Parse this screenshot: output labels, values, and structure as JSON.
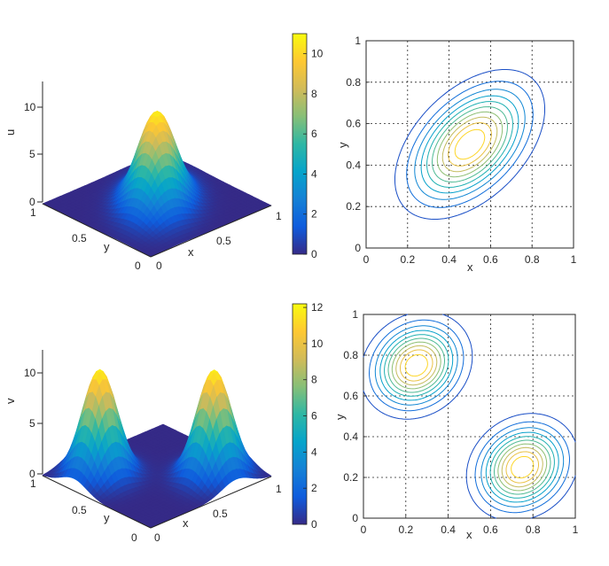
{
  "chart_data": [
    {
      "type": "surface",
      "zlabel": "u",
      "xlabel": "x",
      "ylabel": "y",
      "xlim": [
        0,
        1
      ],
      "ylim": [
        0,
        1
      ],
      "zlim": [
        0,
        11
      ],
      "z_ticks": [
        "0",
        "5",
        "10"
      ],
      "x_ticks": [
        "0",
        "0.5",
        "1"
      ],
      "y_ticks": [
        "0",
        "0.5",
        "1"
      ],
      "peaks": [
        {
          "x": 0.5,
          "y": 0.5,
          "height": 10.7,
          "spread_major": 0.2,
          "spread_minor": 0.12
        }
      ],
      "colorbar": {
        "min": 0,
        "max": 11,
        "ticks": [
          "0",
          "2",
          "4",
          "6",
          "8",
          "10"
        ]
      },
      "colormap": [
        "#352a87",
        "#0f5cdd",
        "#1481d6",
        "#06a4ca",
        "#2eb7a4",
        "#87bf77",
        "#d1bb59",
        "#fec832",
        "#f9fb0e"
      ]
    },
    {
      "type": "contour",
      "xlabel": "x",
      "ylabel": "y",
      "xlim": [
        0,
        1
      ],
      "ylim": [
        0,
        1
      ],
      "x_ticks": [
        "0",
        "0.2",
        "0.4",
        "0.6",
        "0.8",
        "1"
      ],
      "y_ticks": [
        "0",
        "0.2",
        "0.4",
        "0.6",
        "0.8",
        "1"
      ],
      "grid": true,
      "levels": 10,
      "peaks": [
        {
          "x": 0.5,
          "y": 0.5,
          "height": 10.7,
          "spread_major": 0.2,
          "spread_minor": 0.12
        }
      ]
    },
    {
      "type": "surface",
      "zlabel": "v",
      "xlabel": "x",
      "ylabel": "y",
      "xlim": [
        0,
        1
      ],
      "ylim": [
        0,
        1
      ],
      "zlim": [
        0,
        12.2
      ],
      "z_ticks": [
        "0",
        "5",
        "10"
      ],
      "x_ticks": [
        "0",
        "0.5",
        "1"
      ],
      "y_ticks": [
        "0",
        "0.5",
        "1"
      ],
      "peaks": [
        {
          "x": 0.25,
          "y": 0.75,
          "height": 12,
          "spread_major": 0.13,
          "spread_minor": 0.11
        },
        {
          "x": 0.75,
          "y": 0.25,
          "height": 12,
          "spread_major": 0.13,
          "spread_minor": 0.11
        }
      ],
      "colorbar": {
        "min": 0,
        "max": 12.2,
        "ticks": [
          "0",
          "2",
          "4",
          "6",
          "8",
          "10",
          "12"
        ]
      },
      "colormap": [
        "#352a87",
        "#0f5cdd",
        "#1481d6",
        "#06a4ca",
        "#2eb7a4",
        "#87bf77",
        "#d1bb59",
        "#fec832",
        "#f9fb0e"
      ]
    },
    {
      "type": "contour",
      "xlabel": "x",
      "ylabel": "y",
      "xlim": [
        0,
        1
      ],
      "ylim": [
        0,
        1
      ],
      "x_ticks": [
        "0",
        "0.2",
        "0.4",
        "0.6",
        "0.8",
        "1"
      ],
      "y_ticks": [
        "0",
        "0.2",
        "0.4",
        "0.6",
        "0.8",
        "1"
      ],
      "grid": true,
      "levels": 10,
      "peaks": [
        {
          "x": 0.25,
          "y": 0.75,
          "height": 12,
          "spread_major": 0.13,
          "spread_minor": 0.11
        },
        {
          "x": 0.75,
          "y": 0.25,
          "height": 12,
          "spread_major": 0.13,
          "spread_minor": 0.11
        }
      ]
    }
  ]
}
